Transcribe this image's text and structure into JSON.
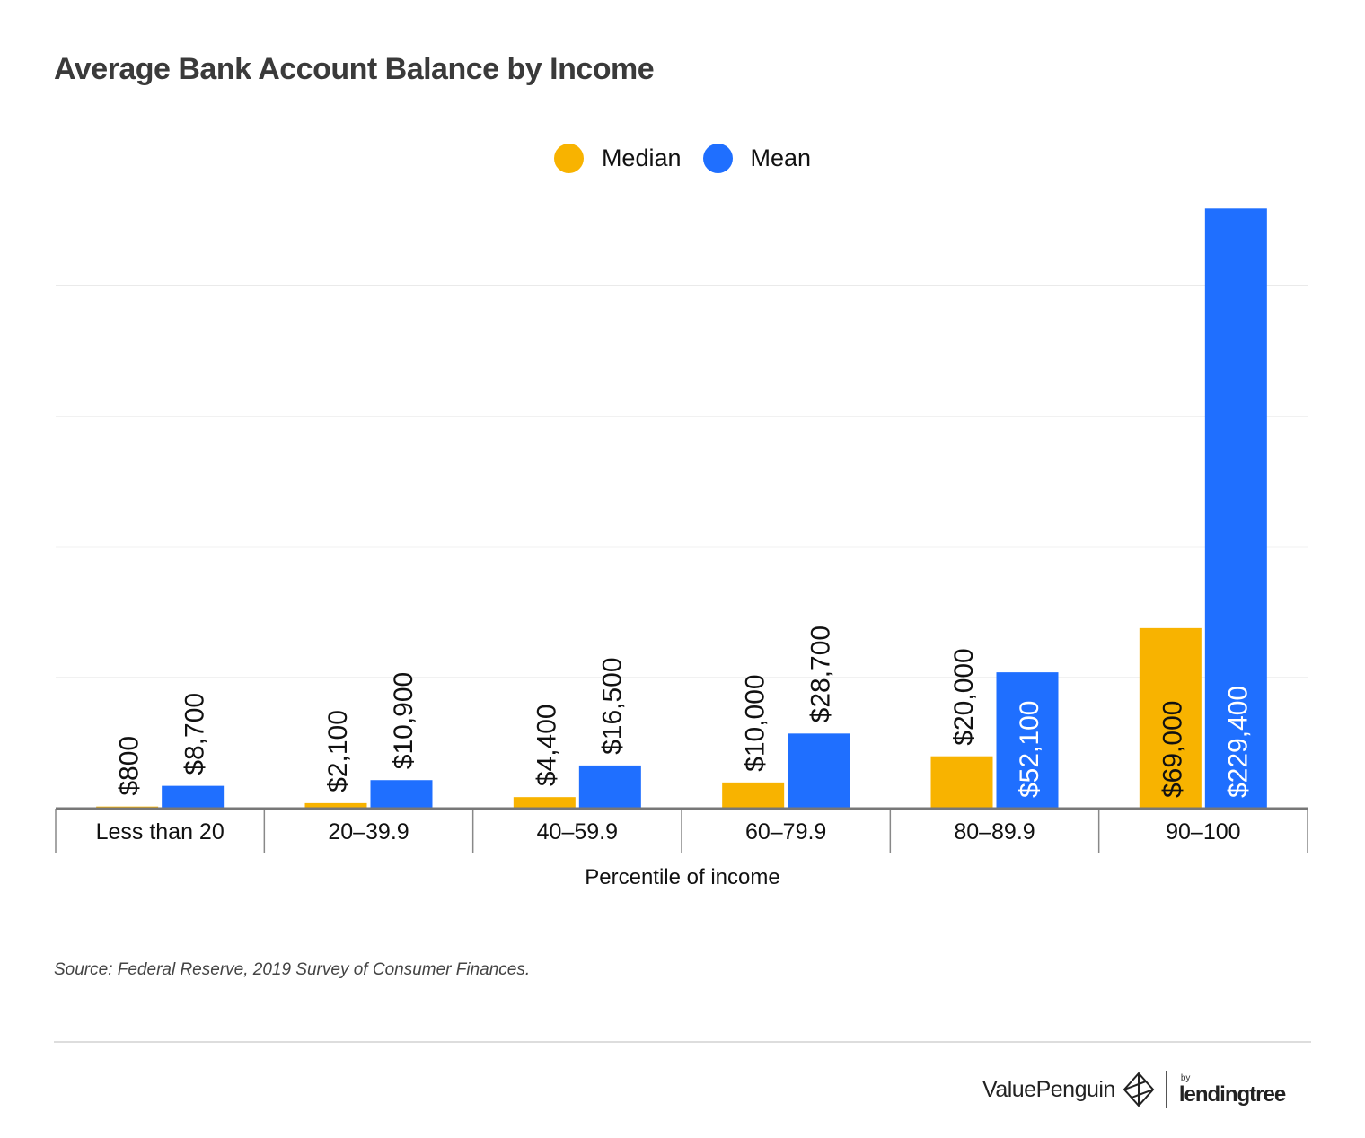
{
  "title": "Average Bank Account Balance by Income",
  "legend": [
    {
      "label": "Median",
      "color": "#F8B300"
    },
    {
      "label": "Mean",
      "color": "#1F6FFF"
    }
  ],
  "chart_data": {
    "type": "bar",
    "categories": [
      "Less than 20",
      "20–39.9",
      "40–59.9",
      "60–79.9",
      "80–89.9",
      "90–100"
    ],
    "series": [
      {
        "name": "Median",
        "color": "#F8B300",
        "values": [
          800,
          2100,
          4400,
          10000,
          20000,
          69000
        ],
        "labels": [
          "$800",
          "$2,100",
          "$4,400",
          "$10,000",
          "$20,000",
          "$69,000"
        ]
      },
      {
        "name": "Mean",
        "color": "#1F6FFF",
        "values": [
          8700,
          10900,
          16500,
          28700,
          52100,
          229400
        ],
        "labels": [
          "$8,700",
          "$10,900",
          "$16,500",
          "$28,700",
          "$52,100",
          "$229,400"
        ]
      }
    ],
    "xlabel": "Percentile of income",
    "ylabel": "",
    "ylim": [
      0,
      250000
    ],
    "grid": true
  },
  "source": "Source: Federal Reserve, 2019 Survey of Consumer Finances.",
  "footer": {
    "brand": "ValuePenguin",
    "partner_by": "by",
    "partner": "lendingtree"
  }
}
